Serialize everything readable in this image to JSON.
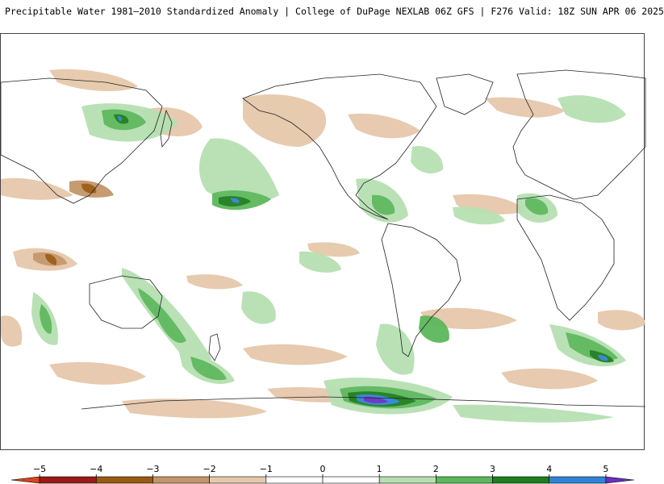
{
  "title": "Precipitable Water 1981–2010 Standardized Anomaly | College of DuPage NEXLAB  06Z GFS | F276 Valid: 18Z SUN APR 06 2025",
  "colorbar": {
    "tick_labels": [
      "−5",
      "−4",
      "−3",
      "−2",
      "−1",
      "0",
      "1",
      "2",
      "3",
      "4",
      "5"
    ],
    "tick_values": [
      -5,
      -4,
      -3,
      -2,
      -1,
      0,
      1,
      2,
      3,
      4,
      5
    ],
    "bins": [
      {
        "from": -5.5,
        "to": -5,
        "color": "#d8431c"
      },
      {
        "from": -5,
        "to": -4,
        "color": "#9c1a16"
      },
      {
        "from": -4,
        "to": -3,
        "color": "#9a5a12"
      },
      {
        "from": -3,
        "to": -2,
        "color": "#c4966a"
      },
      {
        "from": -2,
        "to": -1,
        "color": "#e6c8ab"
      },
      {
        "from": -1,
        "to": 0,
        "color": "#ffffff"
      },
      {
        "from": 0,
        "to": 1,
        "color": "#ffffff"
      },
      {
        "from": 1,
        "to": 2,
        "color": "#b6e0b2"
      },
      {
        "from": 2,
        "to": 3,
        "color": "#5cb85c"
      },
      {
        "from": 3,
        "to": 4,
        "color": "#1e7d1e"
      },
      {
        "from": 4,
        "to": 5,
        "color": "#2f84d8"
      },
      {
        "from": 5,
        "to": 5.5,
        "color": "#6a2fc0"
      }
    ]
  },
  "colors": {
    "land_outline": "#222222",
    "dry_weak": "#e6c8ab",
    "dry_mid": "#c4966a",
    "dry_strong": "#9a5a12",
    "moist_weak": "#b6e0b2",
    "moist_mid": "#5cb85c",
    "moist_strong": "#1e7d1e",
    "moist_extreme": "#2f84d8",
    "moist_max": "#6a2fc0"
  }
}
